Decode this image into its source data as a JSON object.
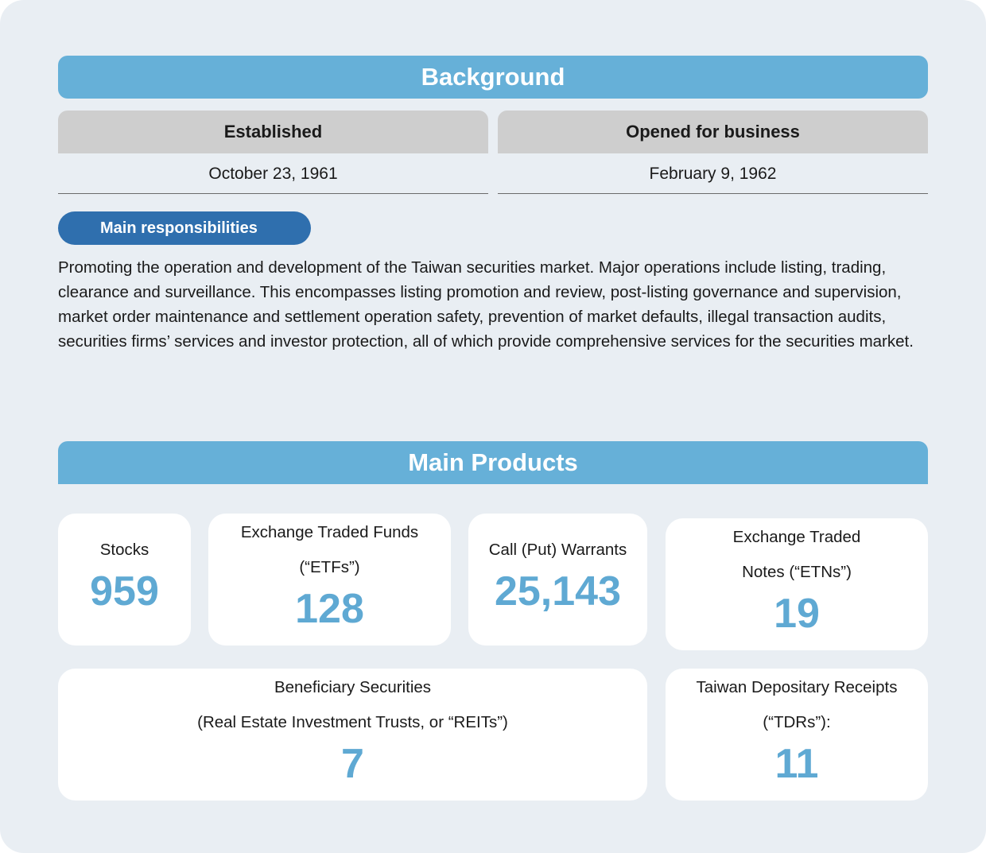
{
  "background": {
    "title": "Background",
    "established_label": "Established",
    "established_value": "October 23, 1961",
    "opened_label": "Opened for business",
    "opened_value": "February 9, 1962",
    "responsibilities_label": "Main responsibilities",
    "responsibilities_text": "Promoting the operation and development of the Taiwan securities market. Major operations include listing, trading, clearance and surveillance. This encompasses listing promotion and review, post-listing governance and supervision, market order maintenance and settlement operation safety, prevention of market defaults, illegal transaction audits, securities firms’ services and investor protection, all of which provide comprehensive services for the securities market."
  },
  "products": {
    "title": "Main Products",
    "items": [
      {
        "line1": "Stocks",
        "line2": "",
        "value": "959"
      },
      {
        "line1": "Exchange Traded Funds",
        "line2": "(“ETFs”)",
        "value": "128"
      },
      {
        "line1": "Call (Put) Warrants",
        "line2": "",
        "value": "25,143"
      },
      {
        "line1": "Exchange Traded",
        "line2": "Notes (“ETNs”)",
        "value": "19"
      },
      {
        "line1": "Beneficiary Securities",
        "line2": "(Real Estate Investment Trusts, or “REITs”)",
        "value": "7"
      },
      {
        "line1": "Taiwan Depositary Receipts",
        "line2": "(“TDRs”):",
        "value": "11"
      }
    ]
  },
  "colors": {
    "banner": "#66b0d8",
    "pill": "#2f6fae",
    "number": "#5fa9d3",
    "panel": "#e9eef3"
  }
}
